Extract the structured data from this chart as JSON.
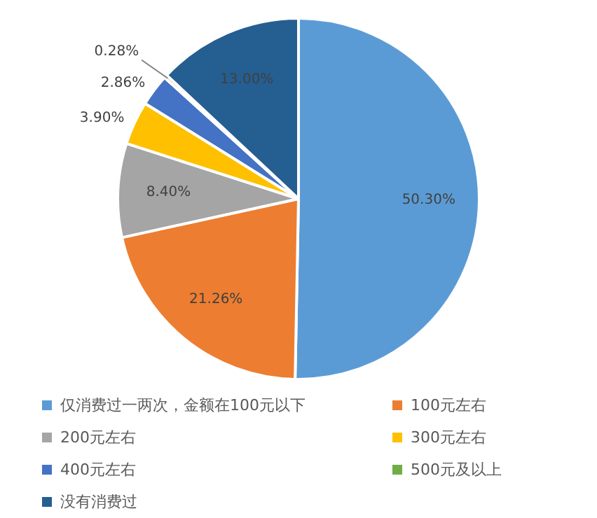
{
  "chart_data": {
    "type": "pie",
    "categories": [
      "仅消费过一两次，金额在100元以下",
      "100元左右",
      "200元左右",
      "300元左右",
      "400元左右",
      "500元及以上",
      "没有消费过"
    ],
    "values": [
      50.3,
      21.26,
      8.4,
      3.9,
      2.86,
      0.28,
      13.0
    ],
    "colors": [
      "#5b9bd5",
      "#ed7d31",
      "#a5a5a5",
      "#ffc000",
      "#4472c4",
      "#70ad47",
      "#255e91"
    ],
    "value_labels": [
      "50.30%",
      "21.26%",
      "8.40%",
      "3.90%",
      "2.86%",
      "0.28%",
      "13.00%"
    ],
    "legend": "bottom"
  }
}
